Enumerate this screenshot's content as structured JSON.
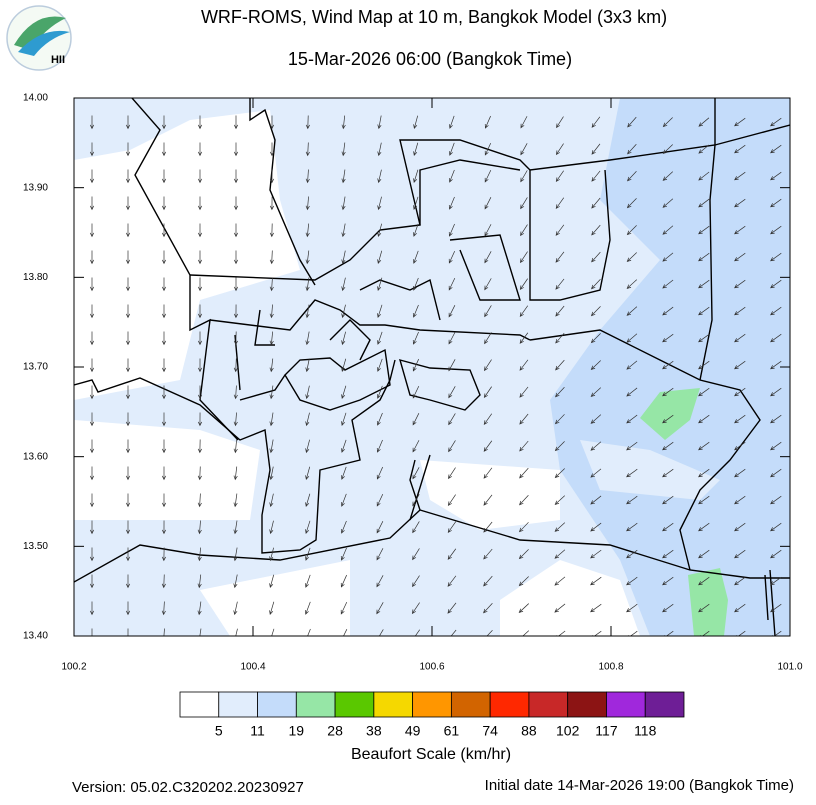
{
  "header": {
    "title": "WRF-ROMS, Wind Map at 10 m, Bangkok Model (3x3 km)",
    "subtitle": "15-Mar-2026 06:00 (Bangkok Time)",
    "logo_text": "HII"
  },
  "map": {
    "xlim": [
      100.2,
      101.0
    ],
    "ylim": [
      13.4,
      14.0
    ],
    "xticks": [
      {
        "value": 100.2,
        "label": "100.2"
      },
      {
        "value": 100.4,
        "label": "100.4"
      },
      {
        "value": 100.6,
        "label": "100.6"
      },
      {
        "value": 100.8,
        "label": "100.8"
      },
      {
        "value": 101.0,
        "label": "101.0"
      }
    ],
    "yticks": [
      {
        "value": 13.4,
        "label": "13.40"
      },
      {
        "value": 13.5,
        "label": "13.50"
      },
      {
        "value": 13.6,
        "label": "13.60"
      },
      {
        "value": 13.7,
        "label": "13.70"
      },
      {
        "value": 13.8,
        "label": "13.80"
      },
      {
        "value": 13.9,
        "label": "13.90"
      },
      {
        "value": 14.0,
        "label": "14.00"
      }
    ]
  },
  "legend": {
    "title": "Beaufort Scale (km/hr)",
    "colors": [
      "#ffffff",
      "#e1edfc",
      "#c4dcfa",
      "#96e6a6",
      "#5ac800",
      "#f5d800",
      "#ff9600",
      "#d26400",
      "#ff2800",
      "#c82828",
      "#8c1414",
      "#a028dc",
      "#6e1e96"
    ],
    "labels": [
      "5",
      "11",
      "19",
      "28",
      "38",
      "49",
      "61",
      "74",
      "88",
      "102",
      "117",
      "118"
    ]
  },
  "footer": {
    "version": "Version: 05.02.C320202.20230927",
    "initial_date": "Initial date 14-Mar-2026 19:00 (Bangkok Time)"
  }
}
